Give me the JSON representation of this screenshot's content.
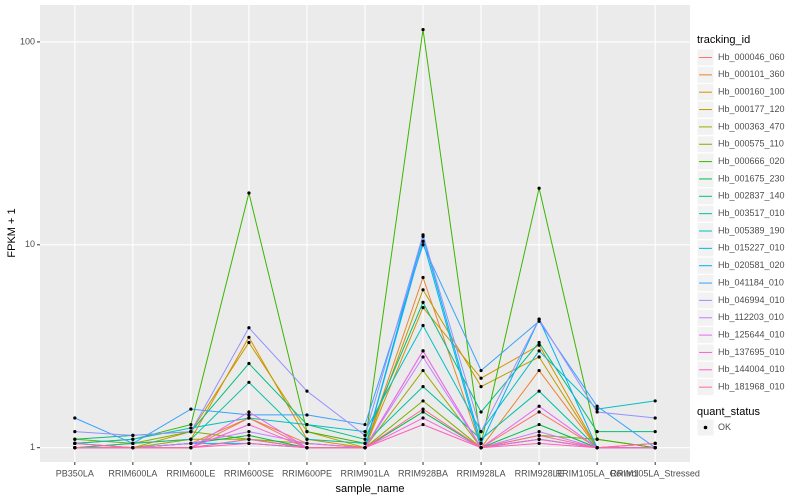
{
  "chart_data": {
    "type": "line",
    "x_label": "sample_name",
    "y_label": "FPKM + 1",
    "log_y": true,
    "grid": true,
    "legend_position": "right",
    "legend_title": "tracking_id",
    "point_legend": {
      "title": "quant_status",
      "labels": [
        "OK"
      ],
      "color": "#000000"
    },
    "categories": [
      "PB350LA",
      "RRIM600LA",
      "RRIM600LE",
      "RRIM600SE",
      "RRIM600PE",
      "RRIM901LA",
      "RRIM928BA",
      "RRIM928LA",
      "RRIM928LE",
      "RRIM105LA_Control",
      "RRIM105LA_Stressed"
    ],
    "ylim": [
      0.85,
      152
    ],
    "yticks": [
      1,
      10,
      100
    ],
    "series": [
      {
        "name": "Hb_000046_060",
        "color": "#F8766D",
        "values": [
          1.0,
          1.0,
          1.0,
          1.4,
          1.0,
          1.0,
          3.0,
          1.0,
          1.5,
          1.0,
          1.05
        ]
      },
      {
        "name": "Hb_000101_360",
        "color": "#EA8331",
        "values": [
          1.05,
          1.0,
          1.05,
          1.4,
          1.05,
          1.0,
          6.9,
          1.0,
          2.4,
          1.0,
          1.0
        ]
      },
      {
        "name": "Hb_000160_100",
        "color": "#D89000",
        "values": [
          1.0,
          1.05,
          1.1,
          3.5,
          1.1,
          1.0,
          4.9,
          2.2,
          3.2,
          1.0,
          1.0
        ]
      },
      {
        "name": "Hb_000177_120",
        "color": "#C09B00",
        "values": [
          1.0,
          1.0,
          1.2,
          3.3,
          1.2,
          1.0,
          6.0,
          2.0,
          2.8,
          1.0,
          1.0
        ]
      },
      {
        "name": "Hb_000363_470",
        "color": "#A3A500",
        "values": [
          1.05,
          1.0,
          1.1,
          1.1,
          1.05,
          1.0,
          2.4,
          1.0,
          1.1,
          1.0,
          1.0
        ]
      },
      {
        "name": "Hb_000575_110",
        "color": "#7CAE00",
        "values": [
          1.1,
          1.05,
          1.2,
          1.1,
          1.0,
          1.0,
          1.7,
          1.0,
          1.15,
          1.1,
          1.0
        ]
      },
      {
        "name": "Hb_000666_020",
        "color": "#39B600",
        "values": [
          1.05,
          1.1,
          1.3,
          18,
          1.2,
          1.05,
          115,
          1.05,
          19,
          1.1,
          1.0
        ]
      },
      {
        "name": "Hb_001675_230",
        "color": "#00BB4E",
        "values": [
          1.0,
          1.0,
          1.05,
          1.15,
          1.0,
          1.0,
          1.5,
          1.0,
          1.3,
          1.0,
          1.0
        ]
      },
      {
        "name": "Hb_002837_140",
        "color": "#00BF7D",
        "values": [
          1.1,
          1.15,
          1.2,
          2.6,
          1.3,
          1.1,
          5.2,
          1.5,
          3.3,
          1.2,
          1.2
        ]
      },
      {
        "name": "Hb_003517_010",
        "color": "#00C1A3",
        "values": [
          1.0,
          1.05,
          1.1,
          2.1,
          1.1,
          1.05,
          2.0,
          1.1,
          1.9,
          1.0,
          1.0
        ]
      },
      {
        "name": "Hb_005389_190",
        "color": "#00BFC4",
        "values": [
          1.05,
          1.1,
          1.25,
          1.4,
          1.3,
          1.2,
          4.0,
          1.2,
          3.0,
          1.55,
          1.7
        ]
      },
      {
        "name": "Hb_015227_010",
        "color": "#00BAE0",
        "values": [
          1.0,
          1.0,
          1.0,
          1.1,
          1.0,
          1.0,
          10.4,
          1.0,
          1.1,
          1.0,
          1.0
        ]
      },
      {
        "name": "Hb_020581_020",
        "color": "#00B0F6",
        "values": [
          1.0,
          1.0,
          1.05,
          1.05,
          1.0,
          1.0,
          11.0,
          1.05,
          4.3,
          1.0,
          1.0
        ]
      },
      {
        "name": "Hb_041184_010",
        "color": "#35A2FF",
        "values": [
          1.4,
          1.05,
          1.55,
          1.45,
          1.45,
          1.3,
          10.0,
          2.4,
          4.2,
          1.6,
          1.0
        ]
      },
      {
        "name": "Hb_046994_010",
        "color": "#9590FF",
        "values": [
          1.2,
          1.15,
          1.2,
          3.9,
          1.9,
          1.15,
          11.2,
          1.2,
          4.3,
          1.5,
          1.4
        ]
      },
      {
        "name": "Hb_112203_010",
        "color": "#C77CFF",
        "values": [
          1.0,
          1.0,
          1.05,
          1.2,
          1.05,
          1.0,
          2.8,
          1.0,
          1.2,
          1.0,
          1.0
        ]
      },
      {
        "name": "Hb_125644_010",
        "color": "#E76BF3",
        "values": [
          1.0,
          1.0,
          1.0,
          1.5,
          1.0,
          1.0,
          3.0,
          1.0,
          1.6,
          1.0,
          1.05
        ]
      },
      {
        "name": "Hb_137695_010",
        "color": "#FA62DB",
        "values": [
          1.0,
          1.0,
          1.0,
          1.3,
          1.0,
          1.0,
          1.4,
          1.0,
          1.1,
          1.0,
          1.0
        ]
      },
      {
        "name": "Hb_144004_010",
        "color": "#FF62BC",
        "values": [
          1.05,
          1.0,
          1.0,
          1.05,
          1.0,
          1.0,
          1.3,
          1.0,
          1.05,
          1.0,
          1.0
        ]
      },
      {
        "name": "Hb_181968_010",
        "color": "#FF6C91",
        "values": [
          1.0,
          1.0,
          1.0,
          1.1,
          1.0,
          1.0,
          1.55,
          1.0,
          1.15,
          1.0,
          1.05
        ]
      }
    ]
  }
}
